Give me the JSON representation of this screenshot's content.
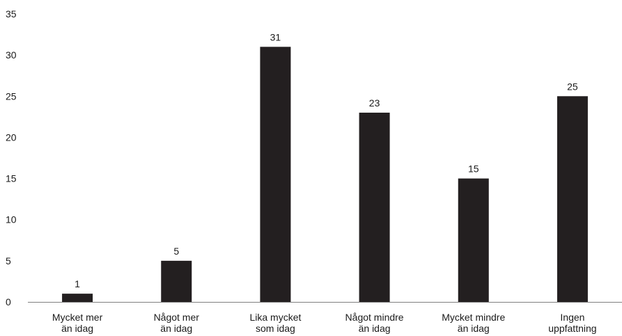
{
  "chart_data": {
    "type": "bar",
    "title": "",
    "xlabel": "",
    "ylabel": "",
    "categories": [
      [
        "Mycket mer",
        "än idag"
      ],
      [
        "Något mer",
        "än idag"
      ],
      [
        "Lika mycket",
        "som idag"
      ],
      [
        "Något mindre",
        "än idag"
      ],
      [
        "Mycket mindre",
        "än idag"
      ],
      [
        "Ingen",
        "uppfattning"
      ]
    ],
    "values": [
      1,
      5,
      31,
      23,
      15,
      25
    ],
    "data_labels": [
      "1",
      "5",
      "31",
      "23",
      "15",
      "25"
    ],
    "yticks": [
      0,
      5,
      10,
      15,
      20,
      25,
      30,
      35
    ],
    "ylim": [
      0,
      35
    ],
    "grid": false,
    "legend": "none",
    "bar_color": "#231f20",
    "text_color": "#1a1a1a",
    "axis_color": "#808080"
  }
}
